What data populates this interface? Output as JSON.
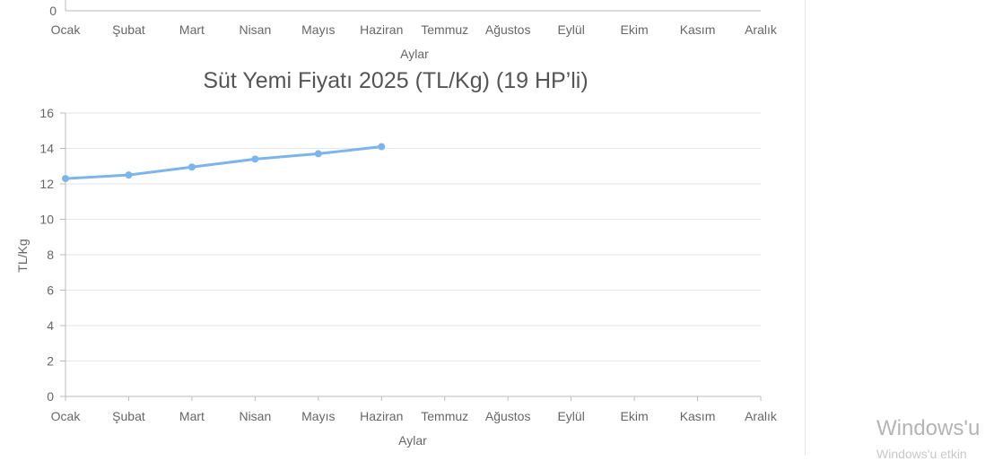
{
  "chart_data": [
    {
      "type": "line",
      "partial": true,
      "categories": [
        "Ocak",
        "Şubat",
        "Mart",
        "Nisan",
        "Mayıs",
        "Haziran",
        "Temmuz",
        "Ağustos",
        "Eylül",
        "Ekim",
        "Kasım",
        "Aralık"
      ],
      "xlabel": "Aylar",
      "yticks": [
        "0"
      ]
    },
    {
      "type": "line",
      "title": "Süt Yemi Fiyatı 2025 (TL/Kg) (19 HP’li)",
      "xlabel": "Aylar",
      "ylabel": "TL/Kg",
      "categories": [
        "Ocak",
        "Şubat",
        "Mart",
        "Nisan",
        "Mayıs",
        "Haziran",
        "Temmuz",
        "Ağustos",
        "Eylül",
        "Ekim",
        "Kasım",
        "Aralık"
      ],
      "ylim": [
        0,
        16
      ],
      "yticks": [
        "0",
        "2",
        "4",
        "6",
        "8",
        "10",
        "12",
        "14",
        "16"
      ],
      "grid": true,
      "series": [
        {
          "values": [
            12.3,
            12.5,
            12.95,
            13.4,
            13.7,
            14.1,
            null,
            null,
            null,
            null,
            null,
            null
          ],
          "color": "#7cb5ec"
        }
      ]
    }
  ],
  "watermark": {
    "line1": "Windows'u",
    "line2": "Windows'u etkin"
  }
}
